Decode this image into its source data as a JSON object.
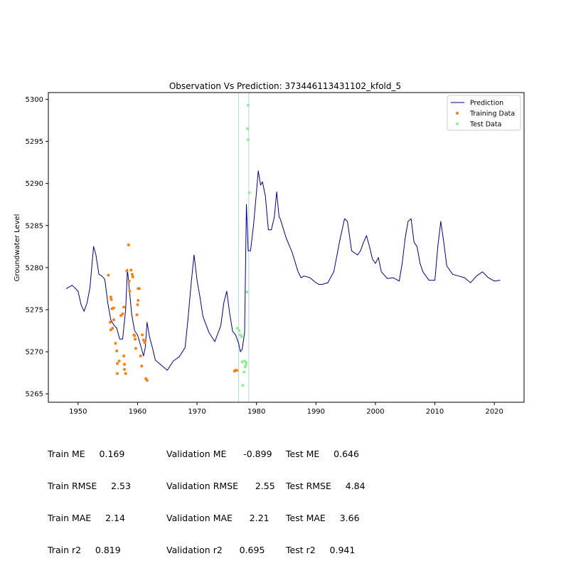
{
  "chart_data": {
    "type": "line",
    "title": "Observation Vs Prediction: 373446113431102_kfold_5",
    "xlabel": "",
    "ylabel": "Groundwater Level",
    "xlim": [
      1945,
      2025
    ],
    "ylim": [
      5264.0,
      5300.8
    ],
    "xticks": [
      1950,
      1960,
      1970,
      1980,
      1990,
      2000,
      2010,
      2020
    ],
    "yticks": [
      5265,
      5270,
      5275,
      5280,
      5285,
      5290,
      5295,
      5300
    ],
    "grid": false,
    "legend_position": "upper right",
    "legend": [
      {
        "label": "Prediction",
        "kind": "line",
        "color": "#00008b"
      },
      {
        "label": "Training Data",
        "kind": "marker",
        "color": "#ff7f0e"
      },
      {
        "label": "Test Data",
        "kind": "marker",
        "color": "#90ee90"
      }
    ],
    "vertical_lines": [
      {
        "x": 1977.0,
        "color": "#add8e6"
      },
      {
        "x": 1978.7,
        "color": "#add8e6"
      }
    ],
    "series": [
      {
        "name": "Prediction",
        "type": "line",
        "color": "#00008b",
        "points": [
          [
            1948.0,
            5277.5
          ],
          [
            1949.0,
            5277.9
          ],
          [
            1950.0,
            5277.2
          ],
          [
            1950.5,
            5275.6
          ],
          [
            1951.0,
            5274.8
          ],
          [
            1951.5,
            5275.8
          ],
          [
            1952.0,
            5277.6
          ],
          [
            1952.6,
            5282.5
          ],
          [
            1953.0,
            5281.5
          ],
          [
            1953.5,
            5279.2
          ],
          [
            1954.0,
            5279.0
          ],
          [
            1954.5,
            5278.6
          ],
          [
            1955.0,
            5275.8
          ],
          [
            1955.5,
            5273.8
          ],
          [
            1956.0,
            5273.2
          ],
          [
            1956.5,
            5272.8
          ],
          [
            1957.0,
            5271.5
          ],
          [
            1957.5,
            5271.5
          ],
          [
            1958.0,
            5275.0
          ],
          [
            1958.3,
            5279.8
          ],
          [
            1958.7,
            5276.8
          ],
          [
            1959.0,
            5274.5
          ],
          [
            1959.5,
            5272.5
          ],
          [
            1960.0,
            5272.0
          ],
          [
            1960.5,
            5270.8
          ],
          [
            1961.0,
            5269.5
          ],
          [
            1961.3,
            5270.5
          ],
          [
            1961.6,
            5273.5
          ],
          [
            1962.0,
            5271.8
          ],
          [
            1962.5,
            5270.5
          ],
          [
            1963.0,
            5269.0
          ],
          [
            1964.0,
            5268.4
          ],
          [
            1965.0,
            5267.8
          ],
          [
            1966.0,
            5268.9
          ],
          [
            1967.0,
            5269.4
          ],
          [
            1968.0,
            5270.5
          ],
          [
            1968.5,
            5274.0
          ],
          [
            1969.0,
            5278.0
          ],
          [
            1969.5,
            5281.5
          ],
          [
            1970.0,
            5278.5
          ],
          [
            1970.5,
            5276.5
          ],
          [
            1971.0,
            5274.2
          ],
          [
            1972.0,
            5272.3
          ],
          [
            1973.0,
            5271.2
          ],
          [
            1974.0,
            5273.1
          ],
          [
            1974.5,
            5275.8
          ],
          [
            1975.0,
            5277.2
          ],
          [
            1975.5,
            5274.5
          ],
          [
            1976.0,
            5272.4
          ],
          [
            1976.5,
            5272.0
          ],
          [
            1977.0,
            5271.0
          ],
          [
            1977.3,
            5270.0
          ],
          [
            1977.6,
            5270.3
          ],
          [
            1978.0,
            5272.3
          ],
          [
            1978.3,
            5287.5
          ],
          [
            1978.6,
            5282.0
          ],
          [
            1979.0,
            5282.0
          ],
          [
            1979.5,
            5285.0
          ],
          [
            1980.0,
            5289.0
          ],
          [
            1980.3,
            5291.5
          ],
          [
            1980.7,
            5289.8
          ],
          [
            1981.0,
            5290.2
          ],
          [
            1981.5,
            5288.5
          ],
          [
            1982.0,
            5284.5
          ],
          [
            1982.5,
            5284.5
          ],
          [
            1983.0,
            5286.0
          ],
          [
            1983.4,
            5289.0
          ],
          [
            1983.8,
            5286.0
          ],
          [
            1984.0,
            5285.8
          ],
          [
            1985.0,
            5283.5
          ],
          [
            1986.0,
            5281.8
          ],
          [
            1987.0,
            5279.5
          ],
          [
            1987.5,
            5278.8
          ],
          [
            1988.0,
            5279.0
          ],
          [
            1989.0,
            5278.8
          ],
          [
            1990.0,
            5278.2
          ],
          [
            1990.5,
            5278.0
          ],
          [
            1991.0,
            5278.0
          ],
          [
            1992.0,
            5278.2
          ],
          [
            1993.0,
            5279.5
          ],
          [
            1994.0,
            5283.2
          ],
          [
            1994.8,
            5285.8
          ],
          [
            1995.3,
            5285.5
          ],
          [
            1996.0,
            5282.0
          ],
          [
            1997.0,
            5281.5
          ],
          [
            1997.5,
            5282.0
          ],
          [
            1998.0,
            5283.0
          ],
          [
            1998.5,
            5283.8
          ],
          [
            1999.0,
            5282.5
          ],
          [
            1999.5,
            5281.0
          ],
          [
            2000.0,
            5280.5
          ],
          [
            2000.5,
            5281.2
          ],
          [
            2001.0,
            5279.5
          ],
          [
            2002.0,
            5278.7
          ],
          [
            2003.0,
            5278.8
          ],
          [
            2004.0,
            5278.4
          ],
          [
            2004.5,
            5280.5
          ],
          [
            2005.0,
            5283.5
          ],
          [
            2005.5,
            5285.5
          ],
          [
            2006.0,
            5285.8
          ],
          [
            2006.5,
            5283.0
          ],
          [
            2007.0,
            5282.5
          ],
          [
            2007.5,
            5280.5
          ],
          [
            2008.0,
            5279.5
          ],
          [
            2009.0,
            5278.5
          ],
          [
            2010.0,
            5278.5
          ],
          [
            2010.5,
            5282.5
          ],
          [
            2011.0,
            5285.5
          ],
          [
            2011.5,
            5283.0
          ],
          [
            2012.0,
            5280.2
          ],
          [
            2013.0,
            5279.2
          ],
          [
            2014.0,
            5279.0
          ],
          [
            2015.0,
            5278.8
          ],
          [
            2016.0,
            5278.2
          ],
          [
            2017.0,
            5279.0
          ],
          [
            2018.0,
            5279.5
          ],
          [
            2019.0,
            5278.8
          ],
          [
            2020.0,
            5278.4
          ],
          [
            2021.0,
            5278.5
          ]
        ]
      },
      {
        "name": "Training Data",
        "type": "scatter",
        "color": "#ff7f0e",
        "points": [
          [
            1955.1,
            5279.1
          ],
          [
            1955.5,
            5276.5
          ],
          [
            1955.6,
            5276.2
          ],
          [
            1955.7,
            5275.1
          ],
          [
            1956.0,
            5275.2
          ],
          [
            1956.0,
            5273.8
          ],
          [
            1955.4,
            5273.5
          ],
          [
            1955.5,
            5272.6
          ],
          [
            1955.8,
            5272.8
          ],
          [
            1956.3,
            5271.0
          ],
          [
            1956.5,
            5270.1
          ],
          [
            1956.6,
            5268.6
          ],
          [
            1956.9,
            5268.9
          ],
          [
            1956.6,
            5267.4
          ],
          [
            1957.2,
            5274.3
          ],
          [
            1957.5,
            5274.5
          ],
          [
            1957.7,
            5275.3
          ],
          [
            1957.7,
            5269.5
          ],
          [
            1957.8,
            5268.5
          ],
          [
            1957.8,
            5267.9
          ],
          [
            1958.0,
            5267.4
          ],
          [
            1958.2,
            5279.6
          ],
          [
            1958.5,
            5282.7
          ],
          [
            1958.6,
            5278.4
          ],
          [
            1958.7,
            5277.2
          ],
          [
            1958.9,
            5279.7
          ],
          [
            1959.1,
            5279.2
          ],
          [
            1959.2,
            5278.9
          ],
          [
            1959.4,
            5272.0
          ],
          [
            1959.5,
            5271.9
          ],
          [
            1959.6,
            5271.5
          ],
          [
            1959.7,
            5270.4
          ],
          [
            1959.9,
            5274.4
          ],
          [
            1960.0,
            5275.6
          ],
          [
            1960.1,
            5276.1
          ],
          [
            1960.1,
            5277.5
          ],
          [
            1960.3,
            5277.5
          ],
          [
            1960.5,
            5269.5
          ],
          [
            1960.7,
            5268.3
          ],
          [
            1960.8,
            5272.0
          ],
          [
            1961.0,
            5271.4
          ],
          [
            1961.2,
            5271.1
          ],
          [
            1961.4,
            5266.8
          ],
          [
            1961.6,
            5266.6
          ],
          [
            1976.3,
            5267.7
          ],
          [
            1976.5,
            5267.8
          ],
          [
            1976.7,
            5267.8
          ]
        ]
      },
      {
        "name": "Test Data",
        "type": "scatter",
        "color": "#90ee90",
        "points": [
          [
            1976.8,
            5272.8
          ],
          [
            1977.1,
            5272.5
          ],
          [
            1977.3,
            5272.0
          ],
          [
            1977.5,
            5271.8
          ],
          [
            1977.6,
            5268.8
          ],
          [
            1977.7,
            5266.0
          ],
          [
            1977.9,
            5267.6
          ],
          [
            1978.0,
            5268.9
          ],
          [
            1978.1,
            5268.2
          ],
          [
            1978.2,
            5268.4
          ],
          [
            1978.3,
            5268.7
          ],
          [
            1978.4,
            5277.1
          ],
          [
            1978.5,
            5296.5
          ],
          [
            1978.6,
            5295.2
          ],
          [
            1978.6,
            5299.3
          ],
          [
            1978.8,
            5288.9
          ]
        ]
      }
    ]
  },
  "metrics": {
    "train": [
      {
        "label": "Train ME",
        "value": "0.169"
      },
      {
        "label": "Train RMSE",
        "value": "2.53"
      },
      {
        "label": "Train MAE",
        "value": "2.14"
      },
      {
        "label": "Train r2",
        "value": "0.819"
      }
    ],
    "validation": [
      {
        "label": "Validation ME",
        "value": "-0.899"
      },
      {
        "label": "Validation RMSE",
        "value": "2.55"
      },
      {
        "label": "Validation MAE",
        "value": "2.21"
      },
      {
        "label": "Validation r2",
        "value": "0.695"
      }
    ],
    "test": [
      {
        "label": "Test ME",
        "value": "0.646"
      },
      {
        "label": "Test RMSE",
        "value": "4.84"
      },
      {
        "label": "Test MAE",
        "value": "3.66"
      },
      {
        "label": "Test r2",
        "value": "0.941"
      }
    ]
  }
}
